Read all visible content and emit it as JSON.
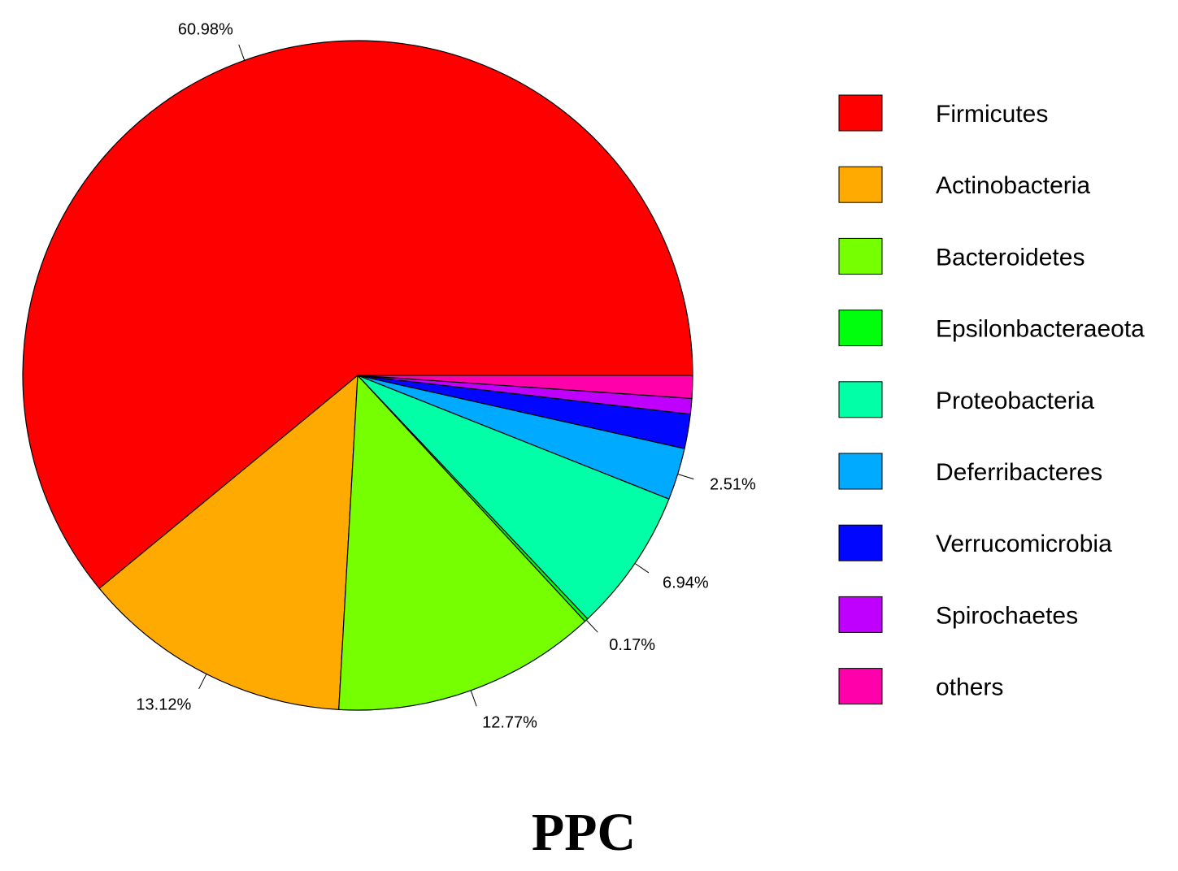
{
  "chart_data": {
    "type": "pie",
    "title": "PPC",
    "legend_position": "right",
    "slices": [
      {
        "name": "Firmicutes",
        "value": 60.98,
        "label": "60.98%",
        "color": "#FF0000"
      },
      {
        "name": "Actinobacteria",
        "value": 13.12,
        "label": "13.12%",
        "color": "#FFAA00"
      },
      {
        "name": "Bacteroidetes",
        "value": 12.77,
        "label": "12.77%",
        "color": "#75FF00"
      },
      {
        "name": "Epsilonbacteraeota",
        "value": 0.17,
        "label": "0.17%",
        "color": "#00FF0D"
      },
      {
        "name": "Proteobacteria",
        "value": 6.94,
        "label": "6.94%",
        "color": "#00FFA6"
      },
      {
        "name": "Deferribacteres",
        "value": 2.51,
        "label": "2.51%",
        "color": "#00AAFF"
      },
      {
        "name": "Verrucomicrobia",
        "value": 1.66,
        "label": "",
        "color": "#0006FF"
      },
      {
        "name": "Spirochaetes",
        "value": 0.75,
        "label": "",
        "color": "#C000FF"
      },
      {
        "name": "others",
        "value": 1.1,
        "label": "",
        "color": "#FF00AA"
      }
    ]
  }
}
